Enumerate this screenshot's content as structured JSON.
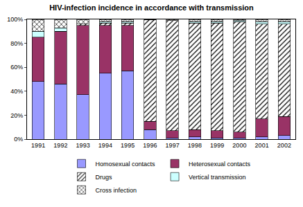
{
  "chart_data": {
    "type": "bar",
    "title": "HIV-infection incidence in accordance with transmission",
    "categories": [
      "1991",
      "1992",
      "1993",
      "1994",
      "1995",
      "1996",
      "1997",
      "1998",
      "1999",
      "2000",
      "2001",
      "2002"
    ],
    "series": [
      {
        "name": "Homosexual contacts",
        "color": "#9999ff",
        "values": [
          48,
          46,
          37,
          55,
          57,
          8,
          1,
          2,
          1,
          1,
          2,
          3
        ]
      },
      {
        "name": "Heterosexual contacts",
        "color": "#993366",
        "values": [
          37,
          44,
          58,
          40,
          38,
          7,
          6,
          6,
          6,
          5,
          15,
          16
        ]
      },
      {
        "name": "Drugs",
        "color": "#ffffff",
        "values": [
          0,
          0,
          1,
          2,
          2,
          85,
          92,
          89,
          90,
          92,
          79,
          77
        ]
      },
      {
        "name": "Vertical transmission",
        "color": "#ccffff",
        "values": [
          5,
          3,
          0,
          1,
          1,
          0,
          0,
          1,
          1,
          1,
          2,
          2
        ]
      },
      {
        "name": "Cross infection",
        "color": "#ffffff",
        "values": [
          10,
          7,
          4,
          2,
          2,
          0,
          1,
          2,
          2,
          1,
          2,
          2
        ]
      }
    ],
    "ylim": [
      0,
      100
    ],
    "yticks": [
      {
        "value": 0,
        "label": "0%"
      },
      {
        "value": 20,
        "label": "20%"
      },
      {
        "value": 40,
        "label": "40%"
      },
      {
        "value": 60,
        "label": "60%"
      },
      {
        "value": 80,
        "label": "80%"
      },
      {
        "value": 100,
        "label": "100%"
      }
    ],
    "stacked": true,
    "grid": false,
    "legend": "bottom"
  }
}
